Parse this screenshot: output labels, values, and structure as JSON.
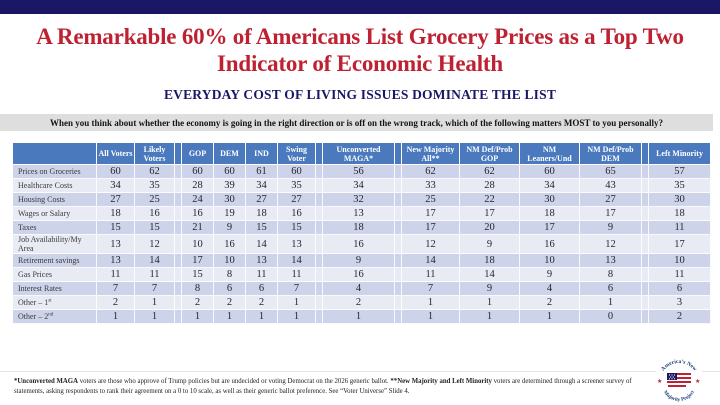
{
  "header": {
    "title": "A Remarkable 60% of Americans List Grocery Prices as a Top Two Indicator of Economic Health",
    "subtitle": "EVERYDAY COST OF LIVING ISSUES DOMINATE THE LIST",
    "question": "When you think about whether the economy is going in the right direction or is off on the wrong track, which of the following matters MOST to you personally?"
  },
  "chart_data": {
    "type": "table",
    "title": "A Remarkable 60% of Americans List Grocery Prices as a Top Two Indicator of Economic Health",
    "columns": [
      "All Voters",
      "Likely Voters",
      "GOP",
      "DEM",
      "IND",
      "Swing Voter",
      "Unconverted MAGA*",
      "New Majority All**",
      "NM Def/Prob GOP",
      "NM Leaners/Und",
      "NM Def/Prob DEM",
      "Left Minority"
    ],
    "rows": [
      {
        "label": "Prices on Groceries",
        "values": [
          60,
          62,
          60,
          60,
          61,
          60,
          56,
          62,
          62,
          60,
          65,
          57
        ]
      },
      {
        "label": "Healthcare Costs",
        "values": [
          34,
          35,
          28,
          39,
          34,
          35,
          34,
          33,
          28,
          34,
          43,
          35
        ]
      },
      {
        "label": "Housing Costs",
        "values": [
          27,
          25,
          24,
          30,
          27,
          27,
          32,
          25,
          22,
          30,
          27,
          30
        ]
      },
      {
        "label": "Wages or Salary",
        "values": [
          18,
          16,
          16,
          19,
          18,
          16,
          13,
          17,
          17,
          18,
          17,
          18
        ]
      },
      {
        "label": "Taxes",
        "values": [
          15,
          15,
          21,
          9,
          15,
          15,
          18,
          17,
          20,
          17,
          9,
          11
        ]
      },
      {
        "label": "Job Availability/My Area",
        "values": [
          13,
          12,
          10,
          16,
          14,
          13,
          16,
          12,
          9,
          16,
          12,
          17
        ]
      },
      {
        "label": "Retirement savings",
        "values": [
          13,
          14,
          17,
          10,
          13,
          14,
          9,
          14,
          18,
          10,
          13,
          10
        ]
      },
      {
        "label": "Gas Prices",
        "values": [
          11,
          11,
          15,
          8,
          11,
          11,
          16,
          11,
          14,
          9,
          8,
          11
        ]
      },
      {
        "label": "Interest Rates",
        "values": [
          7,
          7,
          8,
          6,
          6,
          7,
          4,
          7,
          9,
          4,
          6,
          6
        ]
      },
      {
        "label": "Other – 1st",
        "values": [
          2,
          1,
          2,
          2,
          2,
          1,
          2,
          1,
          1,
          2,
          1,
          3
        ]
      },
      {
        "label": "Other – 2nd",
        "values": [
          1,
          1,
          1,
          1,
          1,
          1,
          1,
          1,
          1,
          1,
          0,
          2
        ]
      }
    ]
  },
  "footnote": {
    "bold1": "*Unconverted MAGA",
    "text1": " voters are those who approve of Trump policies but are undecided or voting Democrat on the 2026 generic ballot. ",
    "bold2": "**New Majority and Left Minority",
    "text2": " voters are determined through a screener survey of statements, asking respondents to rank their agreement on a 0 to 10 scale, as well as their generic ballot preference. See “Voter Universe” Slide 4."
  },
  "logo": {
    "arc_top": "America’s New",
    "arc_bottom": "Majority Project"
  },
  "colors": {
    "accent_navy": "#1B1766",
    "title_red": "#BE2132",
    "table_header_blue": "#4A79BE",
    "band_dark": "#CDD3E8",
    "band_light": "#E9EBF4",
    "question_bar_gray": "#DEDEDE"
  }
}
